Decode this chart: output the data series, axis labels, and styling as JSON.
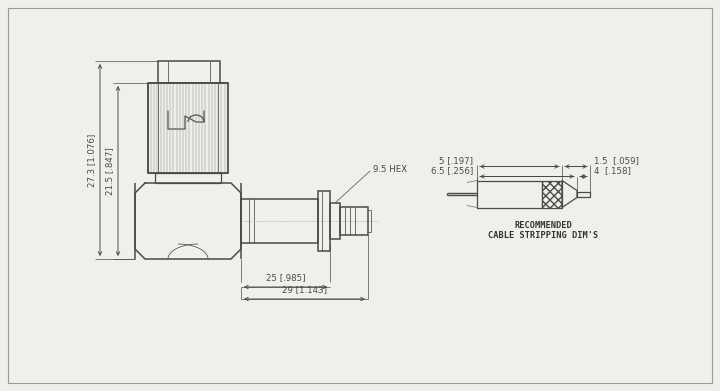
{
  "bg_color": "#f0f0eb",
  "line_color": "#4a4a4a",
  "dim_color": "#4a4a4a",
  "lw": 0.9,
  "lw_thin": 0.55,
  "lw_thick": 1.1,
  "lw_knurl": 0.35,
  "annotations": {
    "dim_27_3": "27.3 [1.076]",
    "dim_21_5": "21.5 [.847]",
    "dim_25": "25 [.985]",
    "dim_29": "29 [1.143]",
    "dim_9_5_hex": "9.5 HEX",
    "dim_5": "5 [.197]",
    "dim_6_5": "6.5 [.256]",
    "dim_1_5": "1.5  [.059]",
    "dim_4": "4  [.158]",
    "cable_label1": "RECOMMENDED",
    "cable_label2": "CABLE STRIPPING DIM'S"
  }
}
